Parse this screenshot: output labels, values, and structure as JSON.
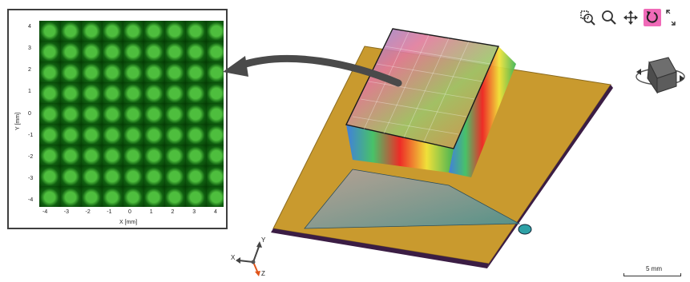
{
  "plot": {
    "x_title": "X [mm]",
    "y_title": "Y [mm]",
    "x_ticks": [
      "-4",
      "-3",
      "-2",
      "-1",
      "0",
      "1",
      "2",
      "3",
      "4"
    ],
    "y_ticks": [
      "4",
      "3",
      "2",
      "1",
      "0",
      "-1",
      "-2",
      "-3",
      "-4"
    ],
    "color": "#1b8f1b"
  },
  "toolbar": {
    "buttons": [
      {
        "icon": "zoom-region-icon"
      },
      {
        "icon": "zoom-icon"
      },
      {
        "icon": "pan-icon"
      },
      {
        "icon": "rotate-icon",
        "active": true,
        "active_color": "#f06ab8"
      },
      {
        "icon": "fit-view-icon"
      }
    ]
  },
  "triad": {
    "x": "X",
    "y": "Y",
    "z": "Z"
  },
  "scalebar": {
    "label": "5 mm"
  },
  "colors": {
    "plate": "#c99a2e",
    "plate_edge": "#3b1d44",
    "arrow": "#4a4a4a"
  }
}
